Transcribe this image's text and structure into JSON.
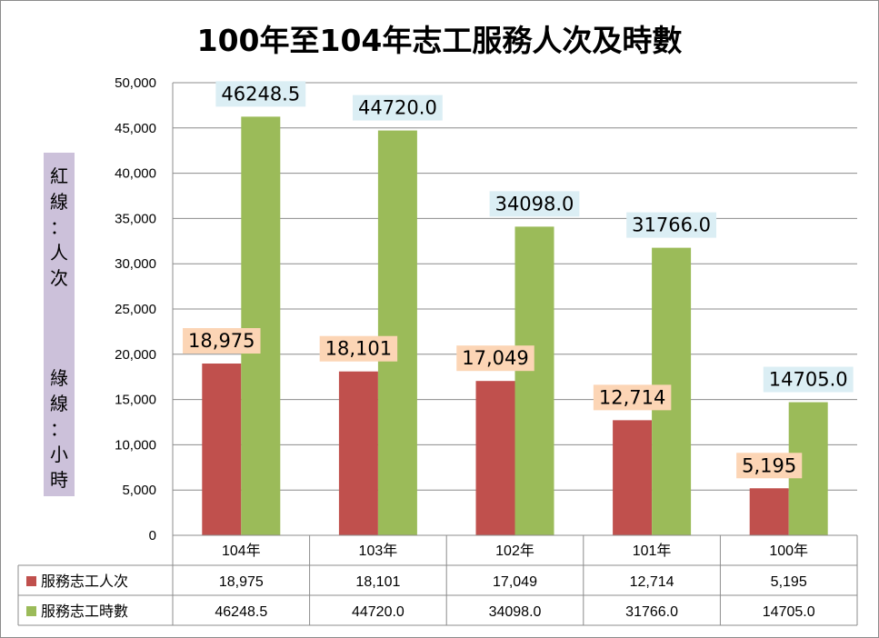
{
  "chart_data": {
    "type": "bar",
    "title": "100年至104年志工服務人次及時數",
    "categories": [
      "104年",
      "103年",
      "102年",
      "101年",
      "100年"
    ],
    "series": [
      {
        "name": "服務志工人次",
        "color": "#c0504d",
        "label_bg": "#fcd5b5",
        "values": [
          18975,
          18101,
          17049,
          12714,
          5195
        ],
        "labels": [
          "18,975",
          "18,101",
          "17,049",
          "12,714",
          "5,195"
        ]
      },
      {
        "name": "服務志工時數",
        "color": "#9bbb59",
        "label_bg": "#dbeef4",
        "values": [
          46248.5,
          44720.0,
          34098.0,
          31766.0,
          14705.0
        ],
        "labels": [
          "46248.5",
          "44720.0",
          "34098.0",
          "31766.0",
          "14705.0"
        ]
      }
    ],
    "ylim": [
      0,
      50000
    ],
    "yticks": [
      "0",
      "5,000",
      "10,000",
      "15,000",
      "20,000",
      "25,000",
      "30,000",
      "35,000",
      "40,000",
      "45,000",
      "50,000"
    ],
    "grid": true,
    "legend": "data-table",
    "table": {
      "rows": [
        [
          "18,975",
          "18,101",
          "17,049",
          "12,714",
          "5,195"
        ],
        [
          "46248.5",
          "44720.0",
          "34098.0",
          "31766.0",
          "14705.0"
        ]
      ]
    },
    "side_note": [
      "紅",
      "線",
      "：",
      "人",
      "次",
      "",
      "綠",
      "線",
      "：",
      "小",
      "時"
    ]
  }
}
